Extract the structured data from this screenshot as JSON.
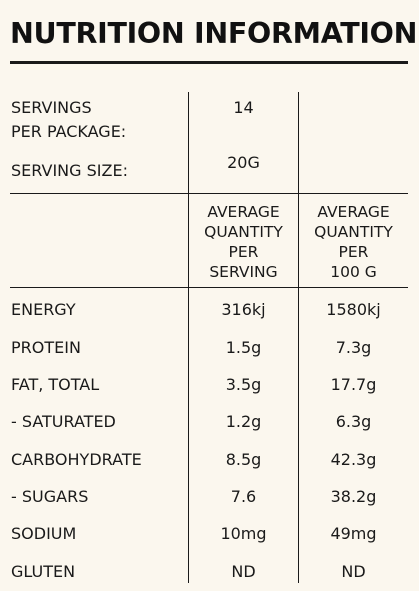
{
  "title": "NUTRITION INFORMATION",
  "servings": {
    "label_line1": "SERVINGS",
    "label_line2": "PER PACKAGE:",
    "value": "14"
  },
  "serving_size": {
    "label": "SERVING SIZE:",
    "value": "20G"
  },
  "column_headers": {
    "per_serving": [
      "AVERAGE",
      "QUANTITY",
      "PER",
      "SERVING"
    ],
    "per_100g": [
      "AVERAGE",
      "QUANTITY",
      "PER",
      "100 G"
    ]
  },
  "rows": [
    {
      "label": "ENERGY",
      "per_serving": "316kj",
      "per_100g": "1580kj"
    },
    {
      "label": "PROTEIN",
      "per_serving": "1.5g",
      "per_100g": "7.3g"
    },
    {
      "label": "FAT, TOTAL",
      "per_serving": "3.5g",
      "per_100g": "17.7g"
    },
    {
      "label": "- SATURATED",
      "per_serving": "1.2g",
      "per_100g": "6.3g"
    },
    {
      "label": "CARBOHYDRATE",
      "per_serving": "8.5g",
      "per_100g": "42.3g"
    },
    {
      "label": "- SUGARS",
      "per_serving": "7.6",
      "per_100g": "38.2g"
    },
    {
      "label": "SODIUM",
      "per_serving": "10mg",
      "per_100g": "49mg"
    },
    {
      "label": "GLUTEN",
      "per_serving": "ND",
      "per_100g": "ND"
    }
  ],
  "colors": {
    "background": "#fbf7ee",
    "text": "#1a1a1a",
    "rules": "#1a1a1a"
  }
}
